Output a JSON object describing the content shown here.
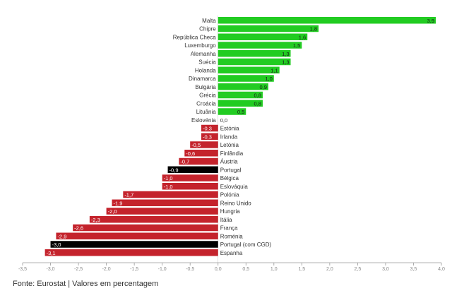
{
  "chart_data": {
    "type": "bar",
    "orientation": "horizontal",
    "xlim": [
      -3.5,
      4.0
    ],
    "xticks": [
      -3.5,
      -3.0,
      -2.5,
      -2.0,
      -1.5,
      -1.0,
      -0.5,
      0.0,
      0.5,
      1.0,
      1.5,
      2.0,
      2.5,
      3.0,
      3.5,
      4.0
    ],
    "tick_labels": [
      "-3,5",
      "-3,0",
      "-2,5",
      "-2,0",
      "-1,5",
      "-1,0",
      "-0,5",
      "0,0",
      "0,5",
      "1,0",
      "1,5",
      "2,0",
      "2,5",
      "3,0",
      "3,5",
      "4,0"
    ],
    "categories": [
      "Malta",
      "Chipre",
      "República Checa",
      "Luxemburgo",
      "Alemanha",
      "Suécia",
      "Holanda",
      "Dinamarca",
      "Bulgária",
      "Grécia",
      "Croácia",
      "Lituânia",
      "Eslovénia",
      "Estónia",
      "Irlanda",
      "Letónia",
      "Finlândia",
      "Áustria",
      "Portugal",
      "Bélgica",
      "Eslováquia",
      "Polónia",
      "Reino Unido",
      "Hungria",
      "Itália",
      "França",
      "Roménia",
      "Portugal (com CGD)",
      "Espanha"
    ],
    "values": [
      3.9,
      1.8,
      1.6,
      1.5,
      1.3,
      1.3,
      1.1,
      1.0,
      0.9,
      0.8,
      0.8,
      0.5,
      0.0,
      -0.3,
      -0.3,
      -0.5,
      -0.6,
      -0.7,
      -0.9,
      -1.0,
      -1.0,
      -1.7,
      -1.9,
      -2.0,
      -2.3,
      -2.6,
      -2.9,
      -3.0,
      -3.1
    ],
    "value_labels": [
      "3,9",
      "1,8",
      "1,6",
      "1,5",
      "1,3",
      "1,3",
      "1,1",
      "1,0",
      "0,9",
      "0,8",
      "0,8",
      "0,5",
      "0,0",
      "-0,3",
      "-0,3",
      "-0,5",
      "-0,6",
      "-0,7",
      "-0,9",
      "-1,0",
      "-1,0",
      "-1,7",
      "-1,9",
      "-2,0",
      "-2,3",
      "-2,6",
      "-2,9",
      "-3,0",
      "-3,1"
    ],
    "highlight": [
      "Portugal",
      "Portugal (com CGD)"
    ],
    "colors": {
      "positive": "#22cc22",
      "negative": "#c4232c",
      "highlight": "#000000",
      "axis": "#999999",
      "tick_text": "#888888",
      "label_text": "#333333"
    }
  },
  "footer": {
    "text": "Fonte: Eurostat | Valores em percentagem"
  }
}
